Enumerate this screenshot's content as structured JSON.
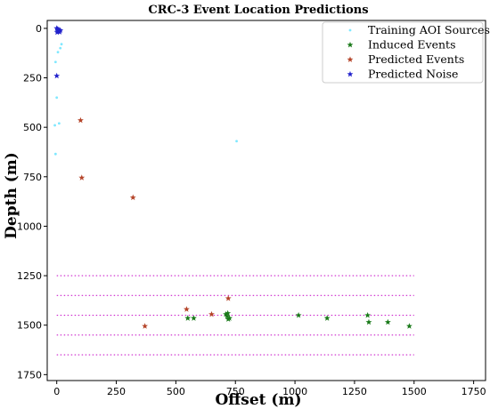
{
  "chart_data": {
    "type": "scatter",
    "title": "CRC-3 Event Location Predictions",
    "xlabel": "Offset (m)",
    "ylabel": "Depth (m)",
    "xlim": [
      -40,
      1800
    ],
    "ylim": [
      1780,
      -40
    ],
    "y_inverted": true,
    "xticks": [
      0,
      250,
      500,
      750,
      1000,
      1250,
      1500,
      1750
    ],
    "yticks": [
      0,
      250,
      500,
      750,
      1000,
      1250,
      1500,
      1750
    ],
    "grid": false,
    "legend_position": "top-right",
    "colors": {
      "training": "#7fe8ff",
      "induced": "#1a7a1a",
      "predicted_events": "#b5452a",
      "predicted_noise": "#2222cc",
      "reference_lines": "#cc22cc"
    },
    "series": [
      {
        "key": "training",
        "name": "Training AOI Sources",
        "marker": "dot",
        "points": [
          [
            3,
            0
          ],
          [
            0,
            10
          ],
          [
            -5,
            170
          ],
          [
            5,
            120
          ],
          [
            15,
            100
          ],
          [
            20,
            80
          ],
          [
            0,
            350
          ],
          [
            -8,
            490
          ],
          [
            10,
            480
          ],
          [
            755,
            570
          ],
          [
            -5,
            635
          ]
        ]
      },
      {
        "key": "induced",
        "name": "Induced Events",
        "marker": "star",
        "points": [
          [
            550,
            1465
          ],
          [
            575,
            1465
          ],
          [
            710,
            1445
          ],
          [
            715,
            1455
          ],
          [
            720,
            1470
          ],
          [
            725,
            1465
          ],
          [
            718,
            1440
          ],
          [
            1015,
            1450
          ],
          [
            1135,
            1465
          ],
          [
            1305,
            1450
          ],
          [
            1310,
            1485
          ],
          [
            1390,
            1485
          ],
          [
            1480,
            1505
          ]
        ]
      },
      {
        "key": "predicted_events",
        "name": "Predicted Events",
        "marker": "star",
        "points": [
          [
            100,
            465
          ],
          [
            105,
            755
          ],
          [
            320,
            855
          ],
          [
            370,
            1505
          ],
          [
            545,
            1420
          ],
          [
            650,
            1445
          ],
          [
            720,
            1365
          ]
        ]
      },
      {
        "key": "predicted_noise",
        "name": "Predicted Noise",
        "marker": "star",
        "points": [
          [
            0,
            0
          ],
          [
            4,
            4
          ],
          [
            8,
            8
          ],
          [
            10,
            12
          ],
          [
            12,
            18
          ],
          [
            6,
            15
          ],
          [
            2,
            20
          ],
          [
            15,
            10
          ],
          [
            0,
            240
          ]
        ]
      }
    ],
    "reference_lines": [
      1250,
      1350,
      1450,
      1550,
      1650
    ],
    "reference_line_x_range": [
      0,
      1500
    ]
  }
}
